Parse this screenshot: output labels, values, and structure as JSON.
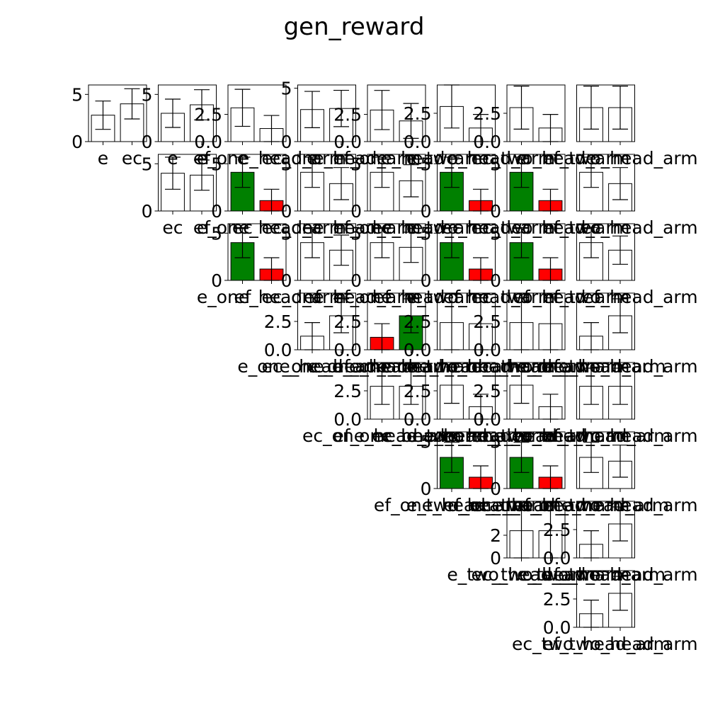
{
  "figure_title": "gen_reward",
  "colors": {
    "better": "#008000",
    "worse": "#ff0000",
    "neutral": "#ffffff",
    "edge": "#000000"
  },
  "labels": [
    "e",
    "ec",
    "ef",
    "e_one_head_arm",
    "ec_one_head_arm",
    "ef_one_head_arm",
    "e_two_head_arm",
    "ec_two_head_arm",
    "ef_two_head_arm"
  ],
  "chart_data": [
    {
      "row": 0,
      "col": 0,
      "type": "bar",
      "categories": [
        "e",
        "ec"
      ],
      "values": [
        2.8,
        4.0
      ],
      "errors": [
        1.5,
        1.6
      ],
      "colors": [
        "neutral",
        "neutral"
      ],
      "ylim": [
        0,
        6
      ],
      "yticks": [
        "0",
        "5"
      ]
    },
    {
      "row": 0,
      "col": 1,
      "type": "bar",
      "categories": [
        "e",
        "ef"
      ],
      "values": [
        3.0,
        3.9
      ],
      "errors": [
        1.5,
        1.6
      ],
      "colors": [
        "neutral",
        "neutral"
      ],
      "ylim": [
        0,
        6
      ],
      "yticks": [
        "0",
        "5"
      ]
    },
    {
      "row": 0,
      "col": 2,
      "type": "bar",
      "categories": [
        "e",
        "e_one_head_arm"
      ],
      "values": [
        3.1,
        1.2
      ],
      "errors": [
        1.7,
        1.2
      ],
      "colors": [
        "neutral",
        "neutral"
      ],
      "ylim": [
        0,
        5.2
      ],
      "yticks": [
        "0.0",
        "2.5"
      ]
    },
    {
      "row": 0,
      "col": 3,
      "type": "bar",
      "categories": [
        "e",
        "ec_one_head_arm"
      ],
      "values": [
        3.0,
        3.1
      ],
      "errors": [
        1.7,
        1.7
      ],
      "colors": [
        "neutral",
        "neutral"
      ],
      "ylim": [
        0,
        5.3
      ],
      "yticks": [
        "0",
        "5"
      ]
    },
    {
      "row": 0,
      "col": 4,
      "type": "bar",
      "categories": [
        "e",
        "ef_one_head_arm"
      ],
      "values": [
        2.9,
        1.9
      ],
      "errors": [
        1.8,
        1.6
      ],
      "colors": [
        "neutral",
        "neutral"
      ],
      "ylim": [
        0,
        5.2
      ],
      "yticks": [
        "0.0",
        "2.5"
      ]
    },
    {
      "row": 0,
      "col": 5,
      "type": "bar",
      "categories": [
        "e",
        "e_two_head_arm"
      ],
      "values": [
        3.1,
        1.2
      ],
      "errors": [
        1.9,
        1.2
      ],
      "colors": [
        "neutral",
        "neutral"
      ],
      "ylim": [
        0,
        5.0
      ],
      "yticks": [
        "0.0",
        "2.5"
      ]
    },
    {
      "row": 0,
      "col": 6,
      "type": "bar",
      "categories": [
        "e",
        "ec_two_head_arm"
      ],
      "values": [
        3.0,
        1.2
      ],
      "errors": [
        1.9,
        1.2
      ],
      "colors": [
        "neutral",
        "neutral"
      ],
      "ylim": [
        0,
        5.0
      ],
      "yticks": [
        "0.0",
        "2.5"
      ]
    },
    {
      "row": 0,
      "col": 7,
      "type": "bar",
      "categories": [
        "e",
        "ef_two_head_arm"
      ],
      "values": [
        3.0,
        3.0
      ],
      "errors": [
        1.9,
        1.9
      ],
      "colors": [
        "neutral",
        "neutral"
      ],
      "ylim": [
        0,
        5.0
      ],
      "yticks": []
    },
    {
      "row": 1,
      "col": 1,
      "type": "bar",
      "categories": [
        "ec",
        "ef"
      ],
      "values": [
        4.0,
        3.8
      ],
      "errors": [
        1.7,
        1.6
      ],
      "colors": [
        "neutral",
        "neutral"
      ],
      "ylim": [
        0,
        6
      ],
      "yticks": [
        "0",
        "5"
      ]
    },
    {
      "row": 1,
      "col": 2,
      "type": "bar",
      "categories": [
        "ec",
        "e_one_head_arm"
      ],
      "values": [
        4.1,
        1.1
      ],
      "errors": [
        1.6,
        1.2
      ],
      "colors": [
        "better",
        "worse"
      ],
      "ylim": [
        0,
        6
      ],
      "yticks": [
        "0",
        "5"
      ]
    },
    {
      "row": 1,
      "col": 3,
      "type": "bar",
      "categories": [
        "ec",
        "ec_one_head_arm"
      ],
      "values": [
        4.1,
        2.9
      ],
      "errors": [
        1.6,
        1.7
      ],
      "colors": [
        "neutral",
        "neutral"
      ],
      "ylim": [
        0,
        6
      ],
      "yticks": [
        "0",
        "5"
      ]
    },
    {
      "row": 1,
      "col": 4,
      "type": "bar",
      "categories": [
        "ec",
        "ef_one_head_arm"
      ],
      "values": [
        4.1,
        3.2
      ],
      "errors": [
        1.6,
        1.7
      ],
      "colors": [
        "neutral",
        "neutral"
      ],
      "ylim": [
        0,
        6
      ],
      "yticks": [
        "0",
        "5"
      ]
    },
    {
      "row": 1,
      "col": 5,
      "type": "bar",
      "categories": [
        "ec",
        "e_two_head_arm"
      ],
      "values": [
        4.1,
        1.1
      ],
      "errors": [
        1.6,
        1.2
      ],
      "colors": [
        "better",
        "worse"
      ],
      "ylim": [
        0,
        6
      ],
      "yticks": [
        "0",
        "5"
      ]
    },
    {
      "row": 1,
      "col": 6,
      "type": "bar",
      "categories": [
        "ec",
        "ec_two_head_arm"
      ],
      "values": [
        4.1,
        1.1
      ],
      "errors": [
        1.6,
        1.2
      ],
      "colors": [
        "better",
        "worse"
      ],
      "ylim": [
        0,
        6
      ],
      "yticks": [
        "0",
        "5"
      ]
    },
    {
      "row": 1,
      "col": 7,
      "type": "bar",
      "categories": [
        "ec",
        "ef_two_head_arm"
      ],
      "values": [
        4.1,
        2.9
      ],
      "errors": [
        1.6,
        1.7
      ],
      "colors": [
        "neutral",
        "neutral"
      ],
      "ylim": [
        0,
        6
      ],
      "yticks": []
    },
    {
      "row": 2,
      "col": 2,
      "type": "bar",
      "categories": [
        "ef",
        "e_one_head_arm"
      ],
      "values": [
        4.0,
        1.2
      ],
      "errors": [
        1.6,
        1.2
      ],
      "colors": [
        "better",
        "worse"
      ],
      "ylim": [
        0,
        6
      ],
      "yticks": [
        "0",
        "5"
      ]
    },
    {
      "row": 2,
      "col": 3,
      "type": "bar",
      "categories": [
        "ef",
        "ec_one_head_arm"
      ],
      "values": [
        4.0,
        3.2
      ],
      "errors": [
        1.6,
        1.6
      ],
      "colors": [
        "neutral",
        "neutral"
      ],
      "ylim": [
        0,
        6
      ],
      "yticks": [
        "0",
        "5"
      ]
    },
    {
      "row": 2,
      "col": 4,
      "type": "bar",
      "categories": [
        "ef",
        "ef_one_head_arm"
      ],
      "values": [
        4.0,
        3.5
      ],
      "errors": [
        1.6,
        1.6
      ],
      "colors": [
        "neutral",
        "neutral"
      ],
      "ylim": [
        0,
        6
      ],
      "yticks": [
        "0",
        "5"
      ]
    },
    {
      "row": 2,
      "col": 5,
      "type": "bar",
      "categories": [
        "ef",
        "e_two_head_arm"
      ],
      "values": [
        4.0,
        1.2
      ],
      "errors": [
        1.6,
        1.2
      ],
      "colors": [
        "better",
        "worse"
      ],
      "ylim": [
        0,
        6
      ],
      "yticks": [
        "0",
        "5"
      ]
    },
    {
      "row": 2,
      "col": 6,
      "type": "bar",
      "categories": [
        "ef",
        "ec_two_head_arm"
      ],
      "values": [
        4.0,
        1.2
      ],
      "errors": [
        1.6,
        1.2
      ],
      "colors": [
        "better",
        "worse"
      ],
      "ylim": [
        0,
        6
      ],
      "yticks": [
        "0",
        "5"
      ]
    },
    {
      "row": 2,
      "col": 7,
      "type": "bar",
      "categories": [
        "ef",
        "ef_two_head_arm"
      ],
      "values": [
        4.0,
        3.2
      ],
      "errors": [
        1.6,
        1.5
      ],
      "colors": [
        "neutral",
        "neutral"
      ],
      "ylim": [
        0,
        6
      ],
      "yticks": []
    },
    {
      "row": 3,
      "col": 3,
      "type": "bar",
      "categories": [
        "e_one_head_arm",
        "ec_one_head_arm"
      ],
      "values": [
        1.2,
        3.0
      ],
      "errors": [
        1.2,
        1.5
      ],
      "colors": [
        "neutral",
        "neutral"
      ],
      "ylim": [
        0,
        5.0
      ],
      "yticks": [
        "0.0",
        "2.5"
      ]
    },
    {
      "row": 3,
      "col": 4,
      "type": "bar",
      "categories": [
        "e_one_head_arm",
        "ef_one_head_arm"
      ],
      "values": [
        1.1,
        3.0
      ],
      "errors": [
        1.2,
        1.5
      ],
      "colors": [
        "worse",
        "better"
      ],
      "ylim": [
        0,
        5.0
      ],
      "yticks": [
        "0.0",
        "2.5"
      ]
    },
    {
      "row": 3,
      "col": 5,
      "type": "bar",
      "categories": [
        "e_one_head_arm",
        "e_two_head_arm"
      ],
      "values": [
        2.4,
        2.3
      ],
      "errors": [
        2.6,
        2.6
      ],
      "colors": [
        "neutral",
        "neutral"
      ],
      "ylim": [
        0,
        5.0
      ],
      "yticks": [
        "0.0",
        "2.5"
      ]
    },
    {
      "row": 3,
      "col": 6,
      "type": "bar",
      "categories": [
        "e_one_head_arm",
        "ec_two_head_arm"
      ],
      "values": [
        2.4,
        2.3
      ],
      "errors": [
        2.6,
        2.6
      ],
      "colors": [
        "neutral",
        "neutral"
      ],
      "ylim": [
        0,
        5.0
      ],
      "yticks": [
        "0.0",
        "2.5"
      ]
    },
    {
      "row": 3,
      "col": 7,
      "type": "bar",
      "categories": [
        "e_one_head_arm",
        "ef_two_head_arm"
      ],
      "values": [
        1.2,
        3.0
      ],
      "errors": [
        1.2,
        1.5
      ],
      "colors": [
        "neutral",
        "neutral"
      ],
      "ylim": [
        0,
        5.0
      ],
      "yticks": []
    },
    {
      "row": 4,
      "col": 4,
      "type": "bar",
      "categories": [
        "ec_one_head_arm",
        "ef_one_head_arm"
      ],
      "values": [
        2.9,
        2.9
      ],
      "errors": [
        1.6,
        1.6
      ],
      "colors": [
        "neutral",
        "neutral"
      ],
      "ylim": [
        0,
        5.0
      ],
      "yticks": [
        "0.0",
        "2.5"
      ]
    },
    {
      "row": 4,
      "col": 5,
      "type": "bar",
      "categories": [
        "ec_one_head_arm",
        "e_two_head_arm"
      ],
      "values": [
        3.0,
        1.1
      ],
      "errors": [
        1.6,
        1.1
      ],
      "colors": [
        "neutral",
        "neutral"
      ],
      "ylim": [
        0,
        5.0
      ],
      "yticks": [
        "0.0",
        "2.5"
      ]
    },
    {
      "row": 4,
      "col": 6,
      "type": "bar",
      "categories": [
        "ec_one_head_arm",
        "ec_two_head_arm"
      ],
      "values": [
        3.0,
        1.1
      ],
      "errors": [
        1.6,
        1.1
      ],
      "colors": [
        "neutral",
        "neutral"
      ],
      "ylim": [
        0,
        5.0
      ],
      "yticks": [
        "0.0",
        "2.5"
      ]
    },
    {
      "row": 4,
      "col": 7,
      "type": "bar",
      "categories": [
        "ec_one_head_arm",
        "ef_two_head_arm"
      ],
      "values": [
        2.9,
        2.9
      ],
      "errors": [
        1.6,
        1.6
      ],
      "colors": [
        "neutral",
        "neutral"
      ],
      "ylim": [
        0,
        5.0
      ],
      "yticks": []
    },
    {
      "row": 5,
      "col": 5,
      "type": "bar",
      "categories": [
        "ef_one_head_arm",
        "e_two_head_arm"
      ],
      "values": [
        3.3,
        1.2
      ],
      "errors": [
        1.6,
        1.2
      ],
      "colors": [
        "better",
        "worse"
      ],
      "ylim": [
        0,
        6
      ],
      "yticks": [
        "0",
        "5"
      ]
    },
    {
      "row": 5,
      "col": 6,
      "type": "bar",
      "categories": [
        "ef_one_head_arm",
        "ec_two_head_arm"
      ],
      "values": [
        3.3,
        1.2
      ],
      "errors": [
        1.6,
        1.2
      ],
      "colors": [
        "better",
        "worse"
      ],
      "ylim": [
        0,
        6
      ],
      "yticks": [
        "0",
        "5"
      ]
    },
    {
      "row": 5,
      "col": 7,
      "type": "bar",
      "categories": [
        "ef_one_head_arm",
        "ef_two_head_arm"
      ],
      "values": [
        3.3,
        2.9
      ],
      "errors": [
        1.6,
        1.7
      ],
      "colors": [
        "neutral",
        "neutral"
      ],
      "ylim": [
        0,
        6
      ],
      "yticks": []
    },
    {
      "row": 6,
      "col": 6,
      "type": "bar",
      "categories": [
        "e_two_head_arm",
        "ec_two_head_arm"
      ],
      "values": [
        2.4,
        2.4
      ],
      "errors": [
        2.6,
        2.6
      ],
      "colors": [
        "neutral",
        "neutral"
      ],
      "ylim": [
        0,
        5.0
      ],
      "yticks": [
        "0",
        "2"
      ]
    },
    {
      "row": 6,
      "col": 7,
      "type": "bar",
      "categories": [
        "e_two_head_arm",
        "ef_two_head_arm"
      ],
      "values": [
        1.2,
        3.0
      ],
      "errors": [
        1.2,
        1.5
      ],
      "colors": [
        "neutral",
        "neutral"
      ],
      "ylim": [
        0,
        5.0
      ],
      "yticks": [
        "0.0",
        "2.5"
      ]
    },
    {
      "row": 7,
      "col": 7,
      "type": "bar",
      "categories": [
        "ec_two_head_arm",
        "ef_two_head_arm"
      ],
      "values": [
        1.2,
        3.0
      ],
      "errors": [
        1.2,
        1.5
      ],
      "colors": [
        "neutral",
        "neutral"
      ],
      "ylim": [
        0,
        5.0
      ],
      "yticks": [
        "0.0",
        "2.5"
      ]
    }
  ]
}
